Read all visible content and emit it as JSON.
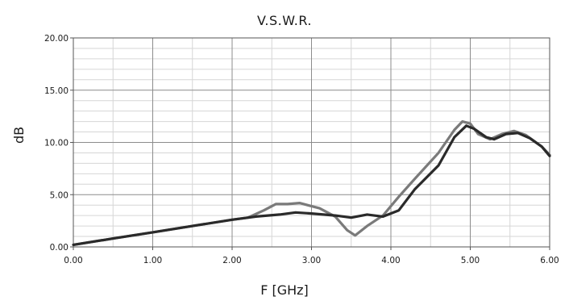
{
  "chart_data": {
    "type": "line",
    "title": "V.S.W.R.",
    "xlabel": "F [GHz]",
    "ylabel": "dB",
    "xlim": [
      0,
      6
    ],
    "ylim": [
      0,
      20
    ],
    "x_ticks": [
      "0.00",
      "1.00",
      "2.00",
      "3.00",
      "4.00",
      "5.00",
      "6.00"
    ],
    "y_ticks": [
      "0.00",
      "5.00",
      "10.00",
      "15.00",
      "20.00"
    ],
    "grid": true,
    "series": [
      {
        "color": "#7a7a7a",
        "points": [
          [
            0,
            0.2
          ],
          [
            0.5,
            0.8
          ],
          [
            1,
            1.4
          ],
          [
            1.5,
            2.0
          ],
          [
            2,
            2.6
          ],
          [
            2.2,
            2.8
          ],
          [
            2.4,
            3.5
          ],
          [
            2.55,
            4.1
          ],
          [
            2.7,
            4.1
          ],
          [
            2.85,
            4.2
          ],
          [
            3.1,
            3.7
          ],
          [
            3.3,
            2.9
          ],
          [
            3.45,
            1.6
          ],
          [
            3.55,
            1.1
          ],
          [
            3.7,
            2.0
          ],
          [
            3.9,
            3.0
          ],
          [
            4.1,
            4.8
          ],
          [
            4.3,
            6.5
          ],
          [
            4.6,
            9.0
          ],
          [
            4.8,
            11.2
          ],
          [
            4.9,
            12.0
          ],
          [
            5.0,
            11.8
          ],
          [
            5.1,
            10.8
          ],
          [
            5.25,
            10.3
          ],
          [
            5.4,
            10.8
          ],
          [
            5.55,
            11.1
          ],
          [
            5.7,
            10.7
          ],
          [
            5.9,
            9.6
          ],
          [
            6.0,
            8.8
          ]
        ]
      },
      {
        "color": "#2a2a2a",
        "points": [
          [
            0,
            0.2
          ],
          [
            0.5,
            0.8
          ],
          [
            1,
            1.4
          ],
          [
            1.5,
            2.0
          ],
          [
            2,
            2.6
          ],
          [
            2.3,
            2.9
          ],
          [
            2.6,
            3.1
          ],
          [
            2.8,
            3.3
          ],
          [
            3.0,
            3.2
          ],
          [
            3.3,
            3.0
          ],
          [
            3.5,
            2.8
          ],
          [
            3.7,
            3.1
          ],
          [
            3.9,
            2.9
          ],
          [
            4.1,
            3.5
          ],
          [
            4.3,
            5.5
          ],
          [
            4.6,
            7.8
          ],
          [
            4.8,
            10.5
          ],
          [
            4.95,
            11.6
          ],
          [
            5.05,
            11.3
          ],
          [
            5.2,
            10.5
          ],
          [
            5.3,
            10.3
          ],
          [
            5.45,
            10.8
          ],
          [
            5.6,
            10.9
          ],
          [
            5.75,
            10.4
          ],
          [
            5.9,
            9.6
          ],
          [
            6.0,
            8.7
          ]
        ]
      }
    ]
  }
}
